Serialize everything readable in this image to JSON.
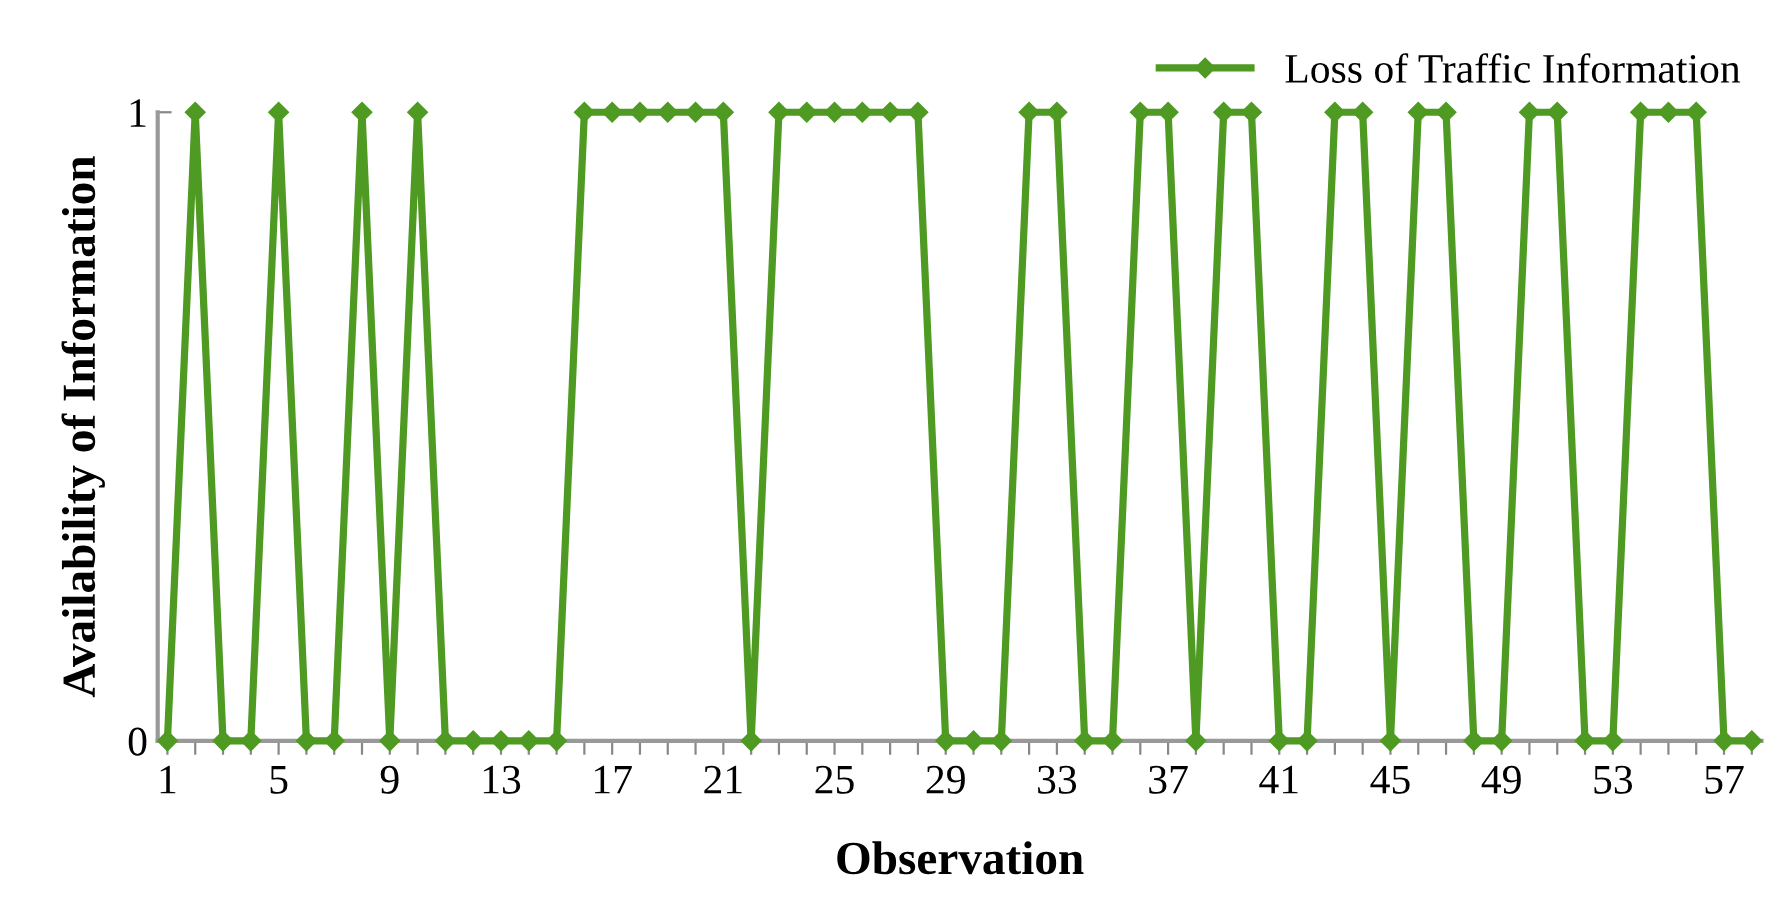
{
  "chart_data": {
    "type": "line",
    "xlabel": "Observation",
    "ylabel": "Availability of Information",
    "categories": [
      "1",
      null,
      null,
      null,
      "5",
      null,
      null,
      null,
      "9",
      null,
      null,
      null,
      "13",
      null,
      null,
      null,
      "17",
      null,
      null,
      null,
      "21",
      null,
      null,
      null,
      "25",
      null,
      null,
      null,
      "29",
      null,
      null,
      null,
      "33",
      null,
      null,
      null,
      "37",
      null,
      null,
      null,
      "41",
      null,
      null,
      null,
      "45",
      null,
      null,
      null,
      "49",
      null,
      null,
      null,
      "53",
      null,
      null,
      null,
      "57",
      null
    ],
    "series": [
      {
        "name": "Loss of Traffic Information",
        "color": "#4e9a22",
        "values": [
          0,
          1,
          0,
          0,
          1,
          0,
          0,
          1,
          0,
          1,
          0,
          0,
          0,
          0,
          0,
          1,
          1,
          1,
          1,
          1,
          1,
          0,
          1,
          1,
          1,
          1,
          1,
          1,
          0,
          0,
          0,
          1,
          1,
          0,
          0,
          1,
          1,
          0,
          1,
          1,
          0,
          0,
          1,
          1,
          0,
          1,
          1,
          0,
          0,
          1,
          1,
          0,
          0,
          1,
          1,
          1,
          0,
          0
        ]
      }
    ],
    "ylim": [
      0,
      1
    ],
    "yticks": [
      0,
      1
    ],
    "grid": false,
    "legend": "top right",
    "marker": "diamond",
    "line_style": "solid"
  }
}
